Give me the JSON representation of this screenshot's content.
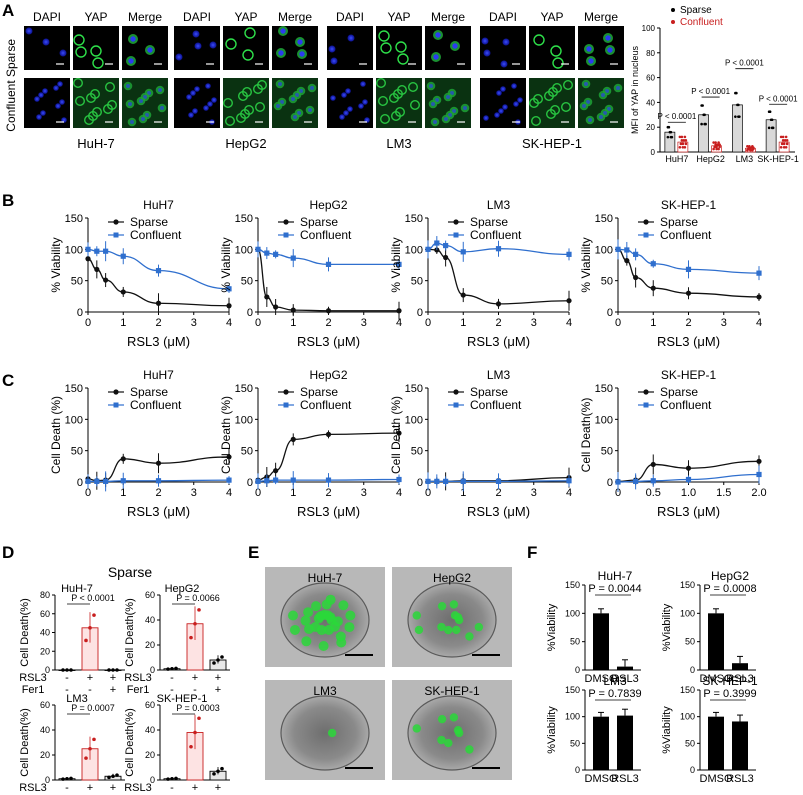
{
  "panels": {
    "A": {
      "letter": "A",
      "row_labels": [
        "Sparse",
        "Confluent"
      ],
      "channel_labels": [
        "DAPI",
        "YAP",
        "Merge"
      ],
      "cell_lines": [
        "HuH-7",
        "HepG2",
        "LM3",
        "SK-HEP-1"
      ],
      "bar": {
        "ylabel": "MFI of YAP in nucleus",
        "yticks": [
          "0",
          "20",
          "40",
          "60",
          "80",
          "100"
        ],
        "legend": [
          "Sparse",
          "Confluent"
        ],
        "groups": [
          "HuH7",
          "HepG2",
          "LM3",
          "SK-HEP-1"
        ],
        "pvals": [
          "P < 0.0001",
          "P < 0.0001",
          "P < 0.0001",
          "P < 0.0001"
        ]
      }
    },
    "B": {
      "letter": "B",
      "titles": [
        "HuH7",
        "HepG2",
        "LM3",
        "SK-HEP-1"
      ],
      "ylabel": "% Viability",
      "xlabel": "RSL3 (μM)",
      "legend": [
        "Sparse",
        "Confluent"
      ]
    },
    "C": {
      "letter": "C",
      "titles": [
        "HuH7",
        "HepG2",
        "LM3",
        "SK-HEP-1"
      ],
      "ylabels": [
        "Cell Death (%)",
        "Cell Death (%)",
        "Cell Death (%)",
        "Cell Death(%)"
      ],
      "xlabel": "RSL3 (μM)",
      "legend": [
        "Sparse",
        "Confluent"
      ]
    },
    "D": {
      "letter": "D",
      "title": "Sparse",
      "ylabel": "Cell Death(%)",
      "row_labels": [
        "RSL3",
        "Fer1"
      ],
      "signs": [
        [
          "-",
          "+",
          "+"
        ],
        [
          "-",
          "-",
          "+"
        ]
      ],
      "subs": [
        {
          "name": "HuH-7",
          "p": "P < 0.0001"
        },
        {
          "name": "HepG2",
          "p": "P = 0.0066"
        },
        {
          "name": "LM3",
          "p": "P = 0.0007"
        },
        {
          "name": "SK-HEP-1",
          "p": "P = 0.0003"
        }
      ]
    },
    "E": {
      "letter": "E",
      "names": [
        "HuH-7",
        "HepG2",
        "LM3",
        "SK-HEP-1"
      ]
    },
    "F": {
      "letter": "F",
      "ylabel": "%Viability",
      "xcats": [
        "DMSO",
        "RSL3"
      ],
      "subs": [
        {
          "name": "HuH-7",
          "p": "P = 0.0044"
        },
        {
          "name": "HepG2",
          "p": "P = 0.0008"
        },
        {
          "name": "LM3",
          "p": "P = 0.7839"
        },
        {
          "name": "SK-HEP-1",
          "p": "P = 0.3999"
        }
      ]
    }
  },
  "chart_data": [
    {
      "id": "A-bar",
      "type": "bar",
      "ylabel": "MFI of YAP in nucleus",
      "ylim": [
        0,
        100
      ],
      "categories": [
        "HuH7",
        "HepG2",
        "LM3",
        "SK-HEP-1"
      ],
      "series": [
        {
          "name": "Sparse",
          "values": [
            16,
            30,
            38,
            26
          ]
        },
        {
          "name": "Confluent",
          "values": [
            8,
            5,
            3,
            8
          ]
        }
      ]
    },
    {
      "id": "B-HuH7",
      "type": "line",
      "title": "HuH7",
      "xlabel": "RSL3 (μM)",
      "ylabel": "% Viability",
      "xlim": [
        0,
        4
      ],
      "ylim": [
        0,
        150
      ],
      "x": [
        0,
        0.25,
        0.5,
        1,
        2,
        4
      ],
      "series": [
        {
          "name": "Sparse",
          "values": [
            85,
            68,
            51,
            32,
            14,
            10
          ]
        },
        {
          "name": "Confluent",
          "values": [
            100,
            97,
            97,
            89,
            66,
            37
          ]
        }
      ]
    },
    {
      "id": "B-HepG2",
      "type": "line",
      "title": "HepG2",
      "xlabel": "RSL3 (μM)",
      "ylabel": "% Viability",
      "xlim": [
        0,
        4
      ],
      "ylim": [
        0,
        150
      ],
      "x": [
        0,
        0.25,
        0.5,
        1,
        2,
        4
      ],
      "series": [
        {
          "name": "Sparse",
          "values": [
            100,
            24,
            8,
            3,
            2,
            2
          ]
        },
        {
          "name": "Confluent",
          "values": [
            100,
            94,
            92,
            86,
            76,
            76
          ]
        }
      ]
    },
    {
      "id": "B-LM3",
      "type": "line",
      "title": "LM3",
      "xlabel": "RSL3 (μM)",
      "ylabel": "% Viability",
      "xlim": [
        0,
        4
      ],
      "ylim": [
        0,
        150
      ],
      "x": [
        0,
        0.25,
        0.5,
        1,
        2,
        4
      ],
      "series": [
        {
          "name": "Sparse",
          "values": [
            100,
            99,
            87,
            27,
            13,
            18
          ]
        },
        {
          "name": "Confluent",
          "values": [
            100,
            110,
            106,
            96,
            101,
            92
          ]
        }
      ]
    },
    {
      "id": "B-SK-HEP-1",
      "type": "line",
      "title": "SK-HEP-1",
      "xlabel": "RSL3 (μM)",
      "ylabel": "% Viability",
      "xlim": [
        0,
        4
      ],
      "ylim": [
        0,
        150
      ],
      "x": [
        0,
        0.25,
        0.5,
        1,
        2,
        4
      ],
      "series": [
        {
          "name": "Sparse",
          "values": [
            100,
            82,
            55,
            38,
            30,
            24
          ]
        },
        {
          "name": "Confluent",
          "values": [
            100,
            99,
            92,
            77,
            68,
            62
          ]
        }
      ]
    },
    {
      "id": "C-HuH7",
      "type": "line",
      "title": "HuH7",
      "xlabel": "RSL3 (μM)",
      "ylabel": "Cell Death (%)",
      "xlim": [
        0,
        4
      ],
      "ylim": [
        0,
        150
      ],
      "x": [
        0,
        0.25,
        0.5,
        1,
        2,
        4
      ],
      "series": [
        {
          "name": "Sparse",
          "values": [
            5,
            2,
            3,
            37,
            30,
            40
          ]
        },
        {
          "name": "Confluent",
          "values": [
            1,
            1,
            1,
            2,
            2,
            3
          ]
        }
      ]
    },
    {
      "id": "C-HepG2",
      "type": "line",
      "title": "HepG2",
      "xlabel": "RSL3 (μM)",
      "ylabel": "Cell Death (%)",
      "xlim": [
        0,
        4
      ],
      "ylim": [
        0,
        150
      ],
      "x": [
        0,
        0.25,
        0.5,
        1,
        2,
        4
      ],
      "series": [
        {
          "name": "Sparse",
          "values": [
            3,
            8,
            18,
            68,
            76,
            78
          ]
        },
        {
          "name": "Confluent",
          "values": [
            1,
            2,
            3,
            3,
            3,
            4
          ]
        }
      ]
    },
    {
      "id": "C-LM3",
      "type": "line",
      "title": "LM3",
      "xlabel": "RSL3 (μM)",
      "ylabel": "Cell Death (%)",
      "xlim": [
        0,
        4
      ],
      "ylim": [
        0,
        150
      ],
      "x": [
        0,
        0.25,
        0.5,
        1,
        2,
        4
      ],
      "series": [
        {
          "name": "Sparse",
          "values": [
            1,
            1,
            1,
            2,
            2,
            7
          ]
        },
        {
          "name": "Confluent",
          "values": [
            1,
            1,
            1,
            1,
            1,
            2
          ]
        }
      ]
    },
    {
      "id": "C-SK-HEP-1",
      "type": "line",
      "title": "SK-HEP-1",
      "xlabel": "RSL3 (μM)",
      "ylabel": "Cell Death(%)",
      "xlim": [
        0,
        2
      ],
      "ylim": [
        0,
        150
      ],
      "x": [
        0,
        0.25,
        0.5,
        1,
        2
      ],
      "series": [
        {
          "name": "Sparse",
          "values": [
            1,
            3,
            28,
            22,
            33
          ]
        },
        {
          "name": "Confluent",
          "values": [
            0,
            1,
            2,
            4,
            12
          ]
        }
      ]
    },
    {
      "id": "D-HuH-7",
      "type": "bar",
      "title": "HuH-7",
      "ylabel": "Cell Death(%)",
      "ylim": [
        0,
        80
      ],
      "categories": [
        "1",
        "2",
        "3"
      ],
      "values": [
        0,
        45,
        0
      ]
    },
    {
      "id": "D-HepG2",
      "type": "bar",
      "title": "HepG2",
      "ylabel": "Cell Death(%)",
      "ylim": [
        0,
        60
      ],
      "categories": [
        "1",
        "2",
        "3"
      ],
      "values": [
        1,
        37,
        8
      ]
    },
    {
      "id": "D-LM3",
      "type": "bar",
      "title": "LM3",
      "ylabel": "Cell Death(%)",
      "ylim": [
        0,
        60
      ],
      "categories": [
        "1",
        "2",
        "3"
      ],
      "values": [
        1,
        25,
        3
      ]
    },
    {
      "id": "D-SK-HEP-1",
      "type": "bar",
      "title": "SK-HEP-1",
      "ylabel": "Cell Death(%)",
      "ylim": [
        0,
        60
      ],
      "categories": [
        "1",
        "2",
        "3"
      ],
      "values": [
        1,
        38,
        7
      ]
    },
    {
      "id": "F-HuH-7",
      "type": "bar",
      "title": "HuH-7",
      "ylabel": "%Viability",
      "ylim": [
        0,
        150
      ],
      "categories": [
        "DMSO",
        "RSL3"
      ],
      "values": [
        100,
        6
      ]
    },
    {
      "id": "F-HepG2",
      "type": "bar",
      "title": "HepG2",
      "ylabel": "%Viability",
      "ylim": [
        0,
        150
      ],
      "categories": [
        "DMSO",
        "RSL3"
      ],
      "values": [
        100,
        12
      ]
    },
    {
      "id": "F-LM3",
      "type": "bar",
      "title": "LM3",
      "ylabel": "%Viability",
      "ylim": [
        0,
        150
      ],
      "categories": [
        "DMSO",
        "RSL3"
      ],
      "values": [
        100,
        102
      ]
    },
    {
      "id": "F-SK-HEP-1",
      "type": "bar",
      "title": "SK-HEP-1",
      "ylabel": "%Viability",
      "ylim": [
        0,
        150
      ],
      "categories": [
        "DMSO",
        "RSL3"
      ],
      "values": [
        100,
        91
      ]
    }
  ]
}
